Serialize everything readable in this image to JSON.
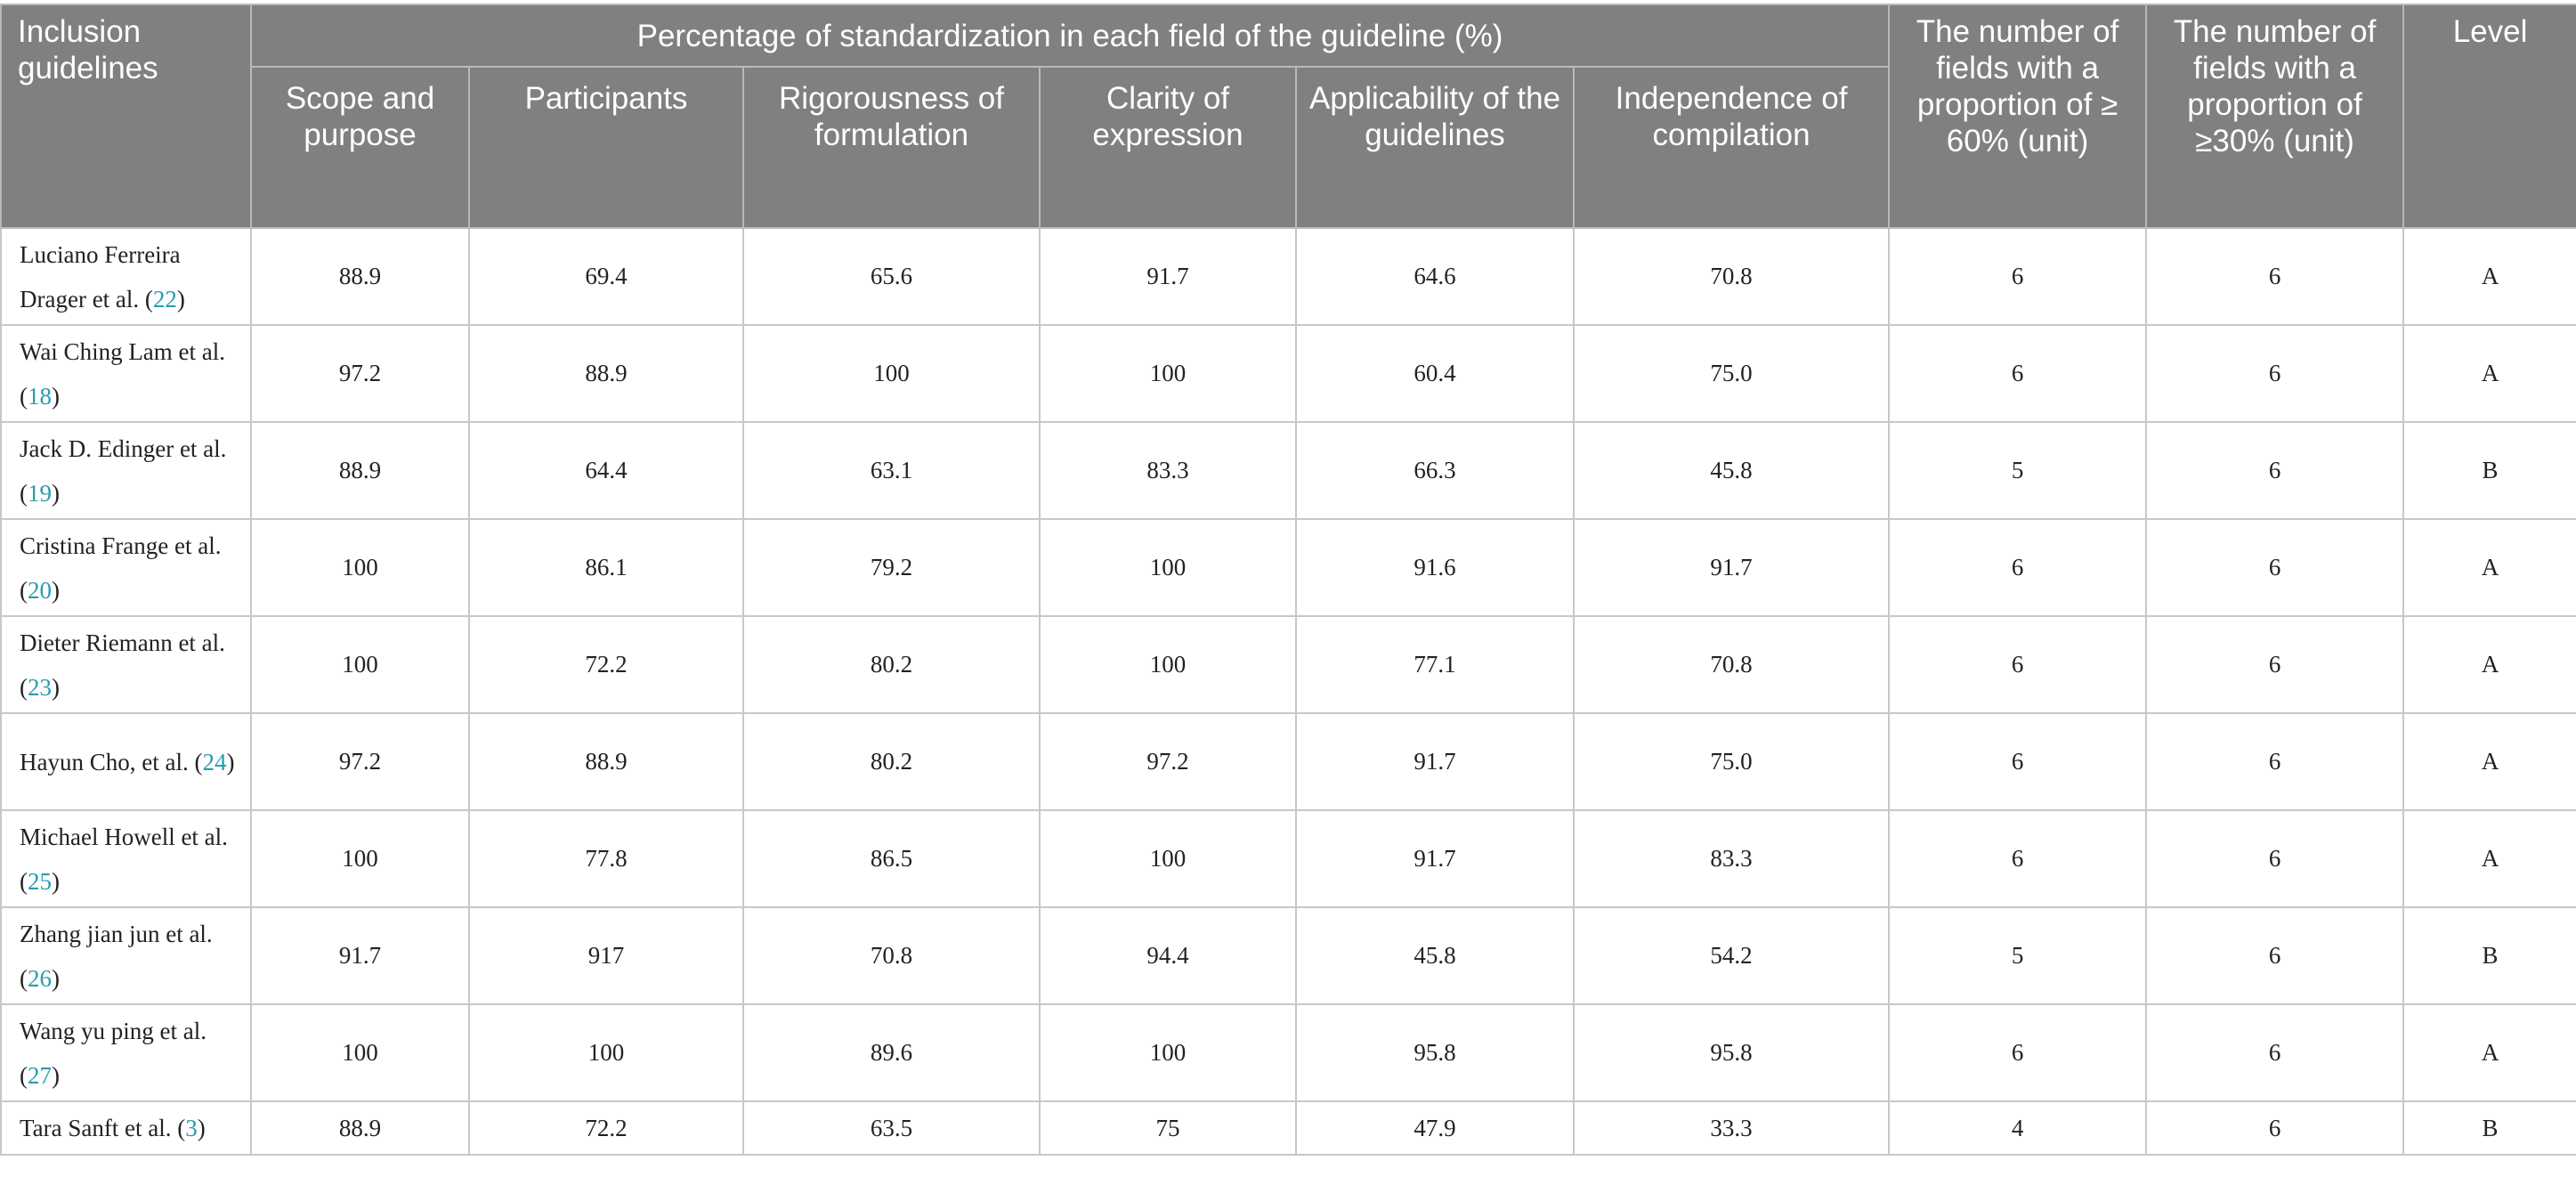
{
  "header": {
    "col_name": "Inclusion guidelines",
    "group_title": "Percentage of standardization in each field of the guideline (%)",
    "fields": [
      "Scope and purpose",
      "Participants",
      "Rigorousness of formulation",
      "Clarity of expression",
      "Applicability of the guidelines",
      "Independence of compilation"
    ],
    "count_ge60": "The number of fields with a proportion of ≥ 60% (unit)",
    "count_ge30": "The number of fields with a proportion of ≥30% (unit)",
    "level": "Level"
  },
  "rows": [
    {
      "name": "Luciano Ferreira Drager et al. (",
      "ref": "22",
      "close": ")",
      "values": [
        "88.9",
        "69.4",
        "65.6",
        "91.7",
        "64.6",
        "70.8"
      ],
      "ge60": "6",
      "ge30": "6",
      "level": "A"
    },
    {
      "name": "Wai Ching Lam et al. (",
      "ref": "18",
      "close": ")",
      "values": [
        "97.2",
        "88.9",
        "100",
        "100",
        "60.4",
        "75.0"
      ],
      "ge60": "6",
      "ge30": "6",
      "level": "A"
    },
    {
      "name": "Jack D. Edinger et al. (",
      "ref": "19",
      "close": ")",
      "values": [
        "88.9",
        "64.4",
        "63.1",
        "83.3",
        "66.3",
        "45.8"
      ],
      "ge60": "5",
      "ge30": "6",
      "level": "B"
    },
    {
      "name": "Cristina Frange et al. (",
      "ref": "20",
      "close": ")",
      "values": [
        "100",
        "86.1",
        "79.2",
        "100",
        "91.6",
        "91.7"
      ],
      "ge60": "6",
      "ge30": "6",
      "level": "A"
    },
    {
      "name": "Dieter Riemann et al. (",
      "ref": "23",
      "close": ")",
      "values": [
        "100",
        "72.2",
        "80.2",
        "100",
        "77.1",
        "70.8"
      ],
      "ge60": "6",
      "ge30": "6",
      "level": "A"
    },
    {
      "name": "Hayun Cho, et al. (",
      "ref": "24",
      "close": ")",
      "values": [
        "97.2",
        "88.9",
        "80.2",
        "97.2",
        "91.7",
        "75.0"
      ],
      "ge60": "6",
      "ge30": "6",
      "level": "A"
    },
    {
      "name": "Michael Howell et al. (",
      "ref": "25",
      "close": ")",
      "values": [
        "100",
        "77.8",
        "86.5",
        "100",
        "91.7",
        "83.3"
      ],
      "ge60": "6",
      "ge30": "6",
      "level": "A"
    },
    {
      "name": "Zhang jian jun et al. (",
      "ref": "26",
      "close": ")",
      "values": [
        "91.7",
        "917",
        "70.8",
        "94.4",
        "45.8",
        "54.2"
      ],
      "ge60": "5",
      "ge30": "6",
      "level": "B"
    },
    {
      "name": "Wang yu ping et al. (",
      "ref": "27",
      "close": ")",
      "values": [
        "100",
        "100",
        "89.6",
        "100",
        "95.8",
        "95.8"
      ],
      "ge60": "6",
      "ge30": "6",
      "level": "A"
    },
    {
      "name": "Tara Sanft et al. (",
      "ref": "3",
      "close": ")",
      "values": [
        "88.9",
        "72.2",
        "63.5",
        "75",
        "47.9",
        "33.3"
      ],
      "ge60": "4",
      "ge30": "6",
      "level": "B"
    }
  ]
}
